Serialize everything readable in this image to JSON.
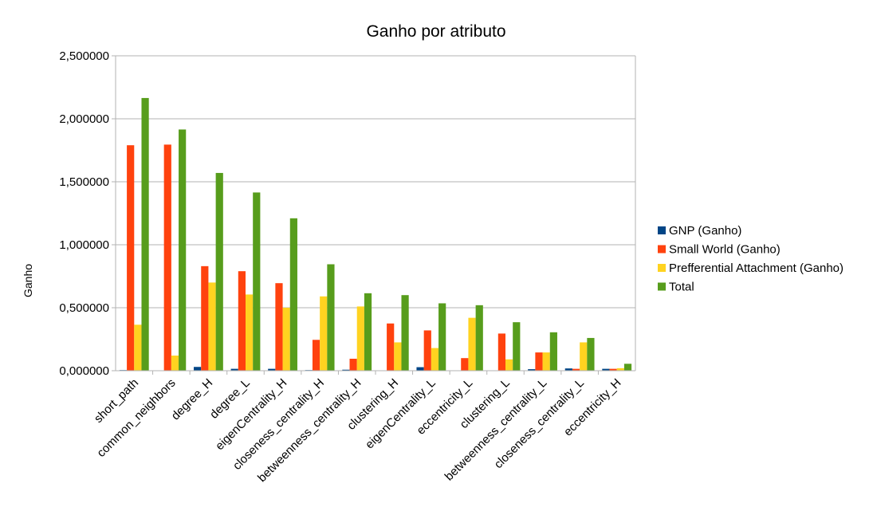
{
  "chart_data": {
    "type": "bar",
    "title": "Ganho por atributo",
    "xlabel": "",
    "ylabel": "Ganho",
    "ylim": [
      0,
      2.5
    ],
    "yticks": [
      "0,000000",
      "0,500000",
      "1,000000",
      "1,500000",
      "2,000000",
      "2,500000"
    ],
    "grid": true,
    "legend_position": "right",
    "categories": [
      "short_path",
      "common_neighbors",
      "degree_H",
      "degree_L",
      "eigenCentrality_H",
      "closeness_centrality_H",
      "betweenness_centrality_H",
      "clustering_H",
      "eigenCentrality_L",
      "eccentricity_L",
      "clustering_L",
      "betweenness_centrality_L",
      "closeness_centrality_L",
      "eccentricity_H"
    ],
    "series": [
      {
        "name": "GNP (Ganho)",
        "color": "#004586",
        "values": [
          0.005,
          0.0,
          0.03,
          0.015,
          0.015,
          0.005,
          0.008,
          0.0,
          0.028,
          0.0,
          0.0,
          0.012,
          0.018,
          0.015
        ]
      },
      {
        "name": "Small World (Ganho)",
        "color": "#ff420e",
        "values": [
          1.79,
          1.795,
          0.83,
          0.79,
          0.695,
          0.245,
          0.095,
          0.375,
          0.32,
          0.1,
          0.295,
          0.145,
          0.015,
          0.015
        ]
      },
      {
        "name": "Prefferential Attachment (Ganho)",
        "color": "#ffd320",
        "values": [
          0.365,
          0.12,
          0.7,
          0.605,
          0.5,
          0.59,
          0.51,
          0.225,
          0.18,
          0.42,
          0.09,
          0.145,
          0.225,
          0.02
        ]
      },
      {
        "name": "Total",
        "color": "#579d1c",
        "values": [
          2.165,
          1.915,
          1.57,
          1.415,
          1.21,
          0.845,
          0.615,
          0.6,
          0.535,
          0.52,
          0.385,
          0.305,
          0.26,
          0.055
        ]
      }
    ]
  }
}
